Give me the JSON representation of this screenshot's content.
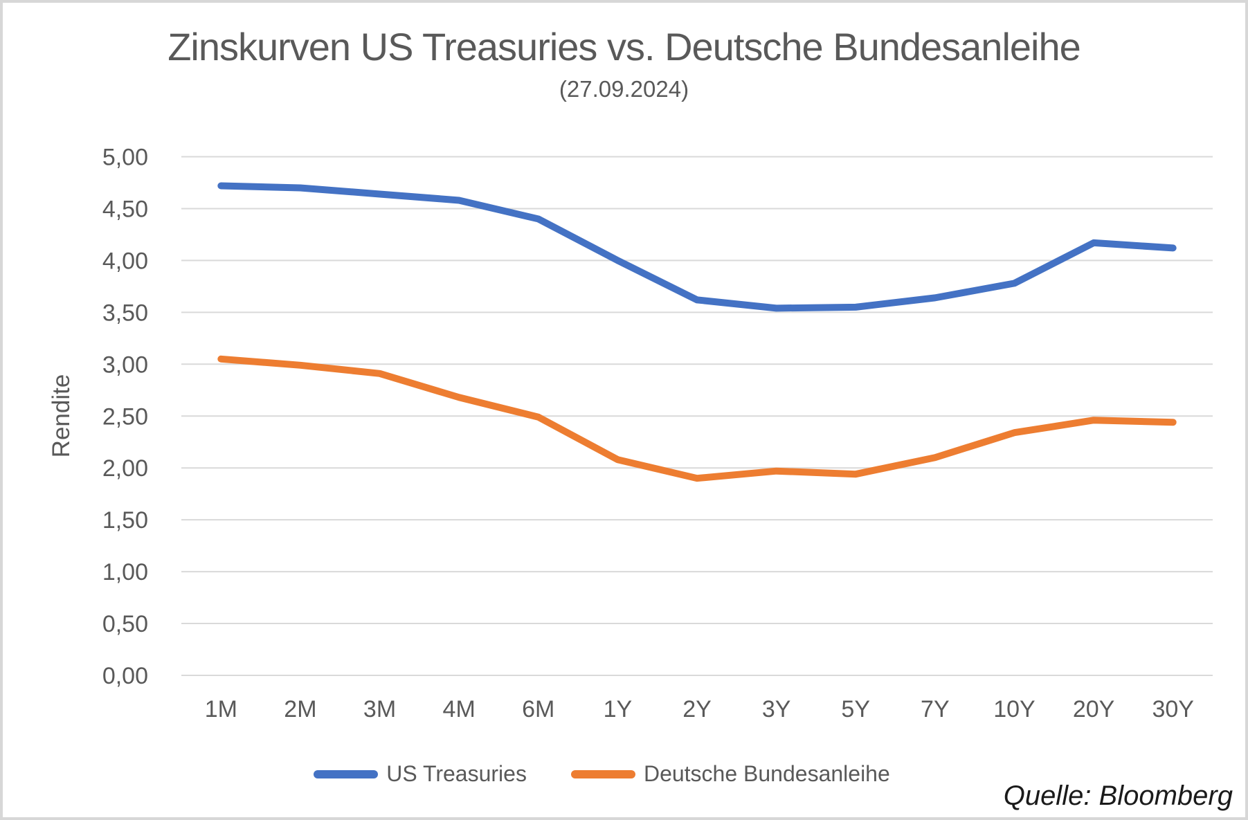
{
  "title": "Zinskurven US Treasuries vs. Deutsche Bundesanleihe",
  "subtitle": "(27.09.2024)",
  "source": "Quelle: Bloomberg",
  "chart_data": {
    "type": "line",
    "title": "Zinskurven US Treasuries vs. Deutsche Bundesanleihe",
    "subtitle": "(27.09.2024)",
    "xlabel": "",
    "ylabel": "Rendite",
    "categories": [
      "1M",
      "2M",
      "3M",
      "4M",
      "6M",
      "1Y",
      "2Y",
      "3Y",
      "5Y",
      "7Y",
      "10Y",
      "20Y",
      "30Y"
    ],
    "series": [
      {
        "name": "US Treasuries",
        "color": "#4472C4",
        "values": [
          4.72,
          4.7,
          4.64,
          4.58,
          4.4,
          4.0,
          3.62,
          3.54,
          3.55,
          3.64,
          3.78,
          4.17,
          4.12
        ]
      },
      {
        "name": "Deutsche Bundesanleihe",
        "color": "#ED7D31",
        "values": [
          3.05,
          2.99,
          2.91,
          2.68,
          2.49,
          2.08,
          1.9,
          1.97,
          1.94,
          2.1,
          2.34,
          2.46,
          2.44
        ]
      }
    ],
    "ylim": [
      0,
      5
    ],
    "ytick_values": [
      0,
      0.5,
      1,
      1.5,
      2,
      2.5,
      3,
      3.5,
      4,
      4.5,
      5
    ],
    "ytick_labels": [
      "0,00",
      "0,50",
      "1,00",
      "1,50",
      "2,00",
      "2,50",
      "3,00",
      "3,50",
      "4,00",
      "4,50",
      "5,00"
    ],
    "grid": "horizontal-only",
    "gridline_color": "#D9D9D9",
    "text_color": "#595959",
    "legend_position": "bottom"
  }
}
